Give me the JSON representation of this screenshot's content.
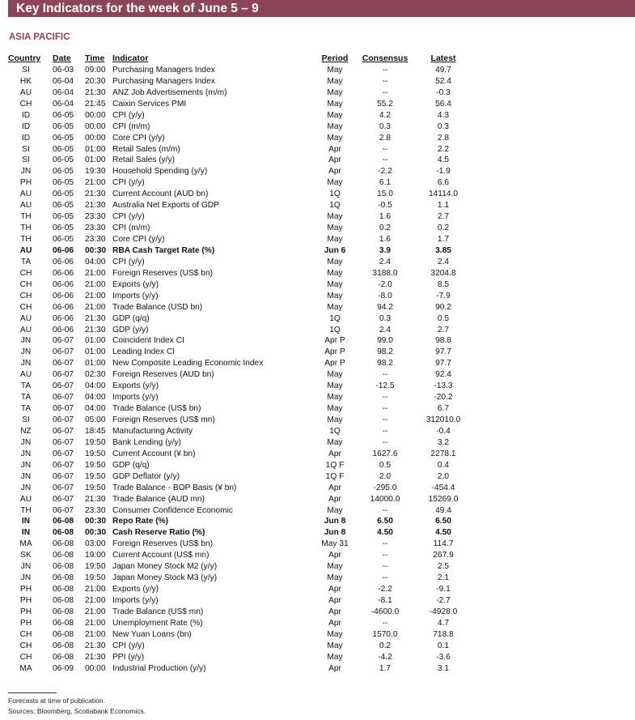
{
  "title": "Key Indicators for the week of June 5 – 9",
  "section": "ASIA PACIFIC",
  "columns": [
    "Country",
    "Date",
    "Time",
    "Indicator",
    "Period",
    "Consensus",
    "Latest"
  ],
  "rows": [
    {
      "v": [
        "SI",
        "06-03",
        "09:00",
        "Purchasing Managers Index",
        "May",
        "--",
        "49.7"
      ]
    },
    {
      "v": [
        "HK",
        "06-04",
        "20:30",
        "Purchasing Managers Index",
        "May",
        "--",
        "52.4"
      ]
    },
    {
      "v": [
        "AU",
        "06-04",
        "21:30",
        "ANZ Job Advertisements (m/m)",
        "May",
        "--",
        "-0.3"
      ]
    },
    {
      "v": [
        "CH",
        "06-04",
        "21:45",
        "Caixin Services PMI",
        "May",
        "55.2",
        "56.4"
      ]
    },
    {
      "v": [
        "ID",
        "06-05",
        "00:00",
        "CPI (y/y)",
        "May",
        "4.2",
        "4.3"
      ]
    },
    {
      "v": [
        "ID",
        "06-05",
        "00:00",
        "CPI (m/m)",
        "May",
        "0.3",
        "0.3"
      ]
    },
    {
      "v": [
        "ID",
        "06-05",
        "00:00",
        "Core CPI (y/y)",
        "May",
        "2.8",
        "2.8"
      ]
    },
    {
      "v": [
        "SI",
        "06-05",
        "01:00",
        "Retail Sales (m/m)",
        "Apr",
        "--",
        "2.2"
      ]
    },
    {
      "v": [
        "SI",
        "06-05",
        "01:00",
        "Retail Sales (y/y)",
        "Apr",
        "--",
        "4.5"
      ]
    },
    {
      "v": [
        "JN",
        "06-05",
        "19:30",
        "Household Spending (y/y)",
        "Apr",
        "-2.2",
        "-1.9"
      ]
    },
    {
      "v": [
        "PH",
        "06-05",
        "21:00",
        "CPI (y/y)",
        "May",
        "6.1",
        "6.6"
      ]
    },
    {
      "v": [
        "AU",
        "06-05",
        "21:30",
        "Current Account (AUD bn)",
        "1Q",
        "15.0",
        "14114.0"
      ]
    },
    {
      "v": [
        "AU",
        "06-05",
        "21:30",
        "Australia Net Exports of GDP",
        "1Q",
        "-0.5",
        "1.1"
      ]
    },
    {
      "v": [
        "TH",
        "06-05",
        "23:30",
        "CPI (y/y)",
        "May",
        "1.6",
        "2.7"
      ]
    },
    {
      "v": [
        "TH",
        "06-05",
        "23:30",
        "CPI (m/m)",
        "May",
        "0.2",
        "0.2"
      ]
    },
    {
      "v": [
        "TH",
        "06-05",
        "23:30",
        "Core CPI (y/y)",
        "May",
        "1.6",
        "1.7"
      ]
    },
    {
      "v": [
        "AU",
        "06-06",
        "00:30",
        "RBA Cash Target Rate (%)",
        "Jun 6",
        "3.9",
        "3.85"
      ],
      "bold": true
    },
    {
      "v": [
        "TA",
        "06-06",
        "04:00",
        "CPI (y/y)",
        "May",
        "2.4",
        "2.4"
      ]
    },
    {
      "v": [
        "CH",
        "06-06",
        "21:00",
        "Foreign Reserves (US$ bn)",
        "May",
        "3188.0",
        "3204.8"
      ]
    },
    {
      "v": [
        "CH",
        "06-06",
        "21:00",
        "Exports (y/y)",
        "May",
        "-2.0",
        "8.5"
      ]
    },
    {
      "v": [
        "CH",
        "06-06",
        "21:00",
        "Imports (y/y)",
        "May",
        "-8.0",
        "-7.9"
      ]
    },
    {
      "v": [
        "CH",
        "06-06",
        "21:00",
        "Trade Balance (USD bn)",
        "May",
        "94.2",
        "90.2"
      ]
    },
    {
      "v": [
        "AU",
        "06-06",
        "21:30",
        "GDP (q/q)",
        "1Q",
        "0.3",
        "0.5"
      ]
    },
    {
      "v": [
        "AU",
        "06-06",
        "21:30",
        "GDP (y/y)",
        "1Q",
        "2.4",
        "2.7"
      ]
    },
    {
      "v": [
        "JN",
        "06-07",
        "01:00",
        "Coincident Index CI",
        "Apr P",
        "99.0",
        "98.8"
      ]
    },
    {
      "v": [
        "JN",
        "06-07",
        "01:00",
        "Leading Index CI",
        "Apr P",
        "98.2",
        "97.7"
      ]
    },
    {
      "v": [
        "JN",
        "06-07",
        "01:00",
        "New Composite Leading Economic Index",
        "Apr P",
        "98.2",
        "97.7"
      ]
    },
    {
      "v": [
        "AU",
        "06-07",
        "02:30",
        "Foreign Reserves (AUD bn)",
        "May",
        "--",
        "92.4"
      ]
    },
    {
      "v": [
        "TA",
        "06-07",
        "04:00",
        "Exports (y/y)",
        "May",
        "-12.5",
        "-13.3"
      ]
    },
    {
      "v": [
        "TA",
        "06-07",
        "04:00",
        "Imports (y/y)",
        "May",
        "--",
        "-20.2"
      ]
    },
    {
      "v": [
        "TA",
        "06-07",
        "04:00",
        "Trade Balance (US$ bn)",
        "May",
        "--",
        "6.7"
      ]
    },
    {
      "v": [
        "SI",
        "06-07",
        "05:00",
        "Foreign Reserves (US$ mn)",
        "May",
        "--",
        "312010.0"
      ]
    },
    {
      "v": [
        "NZ",
        "06-07",
        "18:45",
        "Manufacturing Activity",
        "1Q",
        "--",
        "-0.4"
      ]
    },
    {
      "v": [
        "JN",
        "06-07",
        "19:50",
        "Bank Lending (y/y)",
        "May",
        "--",
        "3.2"
      ]
    },
    {
      "v": [
        "JN",
        "06-07",
        "19:50",
        "Current Account (¥ bn)",
        "Apr",
        "1627.6",
        "2278.1"
      ]
    },
    {
      "v": [
        "JN",
        "06-07",
        "19:50",
        "GDP (q/q)",
        "1Q F",
        "0.5",
        "0.4"
      ]
    },
    {
      "v": [
        "JN",
        "06-07",
        "19:50",
        "GDP Deflator (y/y)",
        "1Q F",
        "2.0",
        "2.0"
      ]
    },
    {
      "v": [
        "JN",
        "06-07",
        "19:50",
        "Trade Balance - BOP Basis (¥ bn)",
        "Apr",
        "-295.0",
        "-454.4"
      ]
    },
    {
      "v": [
        "AU",
        "06-07",
        "21:30",
        "Trade Balance (AUD mn)",
        "Apr",
        "14000.0",
        "15269.0"
      ]
    },
    {
      "v": [
        "TH",
        "06-07",
        "23:30",
        "Consumer Confidence Economic",
        "May",
        "--",
        "49.4"
      ]
    },
    {
      "v": [
        "IN",
        "06-08",
        "00:30",
        "Repo Rate (%)",
        "Jun 8",
        "6.50",
        "6.50"
      ],
      "bold": true
    },
    {
      "v": [
        "IN",
        "06-08",
        "00:30",
        "Cash Reserve Ratio (%)",
        "Jun 8",
        "4.50",
        "4.50"
      ],
      "bold": true
    },
    {
      "v": [
        "MA",
        "06-08",
        "03:00",
        "Foreign Reserves (US$ bn)",
        "May 31",
        "--",
        "114.7"
      ]
    },
    {
      "v": [
        "SK",
        "06-08",
        "19:00",
        "Current Account (US$ mn)",
        "Apr",
        "--",
        "267.9"
      ]
    },
    {
      "v": [
        "JN",
        "06-08",
        "19:50",
        "Japan Money Stock M2 (y/y)",
        "May",
        "--",
        "2.5"
      ]
    },
    {
      "v": [
        "JN",
        "06-08",
        "19:50",
        "Japan Money Stock M3 (y/y)",
        "May",
        "--",
        "2.1"
      ]
    },
    {
      "v": [
        "PH",
        "06-08",
        "21:00",
        "Exports (y/y)",
        "Apr",
        "-2.2",
        "-9.1"
      ]
    },
    {
      "v": [
        "PH",
        "06-08",
        "21:00",
        "Imports (y/y)",
        "Apr",
        "-8.1",
        "-2.7"
      ]
    },
    {
      "v": [
        "PH",
        "06-08",
        "21:00",
        "Trade Balance (US$ mn)",
        "Apr",
        "-4600.0",
        "-4928.0"
      ]
    },
    {
      "v": [
        "PH",
        "06-08",
        "21:00",
        "Unemployment Rate (%)",
        "Apr",
        "--",
        "4.7"
      ]
    },
    {
      "v": [
        "CH",
        "06-08",
        "21:00",
        "New Yuan Loans (bn)",
        "May",
        "1570.0",
        "718.8"
      ]
    },
    {
      "v": [
        "CH",
        "06-08",
        "21:30",
        "CPI (y/y)",
        "May",
        "0.2",
        "0.1"
      ]
    },
    {
      "v": [
        "CH",
        "06-08",
        "21:30",
        "PPI (y/y)",
        "May",
        "-4.2",
        "-3.6"
      ]
    },
    {
      "v": [
        "MA",
        "06-09",
        "00:00",
        "Industrial Production (y/y)",
        "Apr",
        "1.7",
        "3.1"
      ]
    }
  ],
  "footnotes": [
    "Forecasts at time of publication.",
    "Sources: Bloomberg, Scotiabank Economics."
  ],
  "colors": {
    "accent": "#8c4458"
  }
}
